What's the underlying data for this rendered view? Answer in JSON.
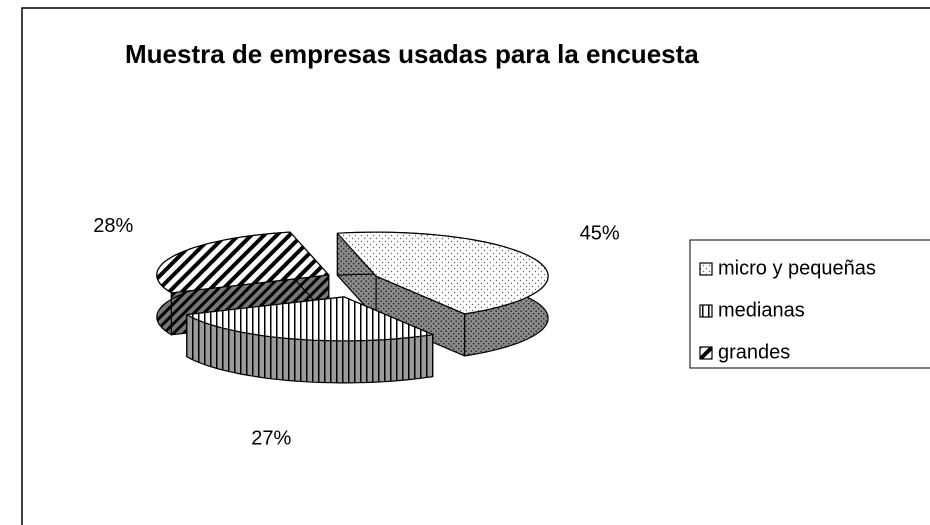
{
  "chart_data": {
    "type": "pie3d",
    "title": "Muestra de empresas usadas para la encuesta",
    "categories": [
      "micro y pequeñas",
      "medianas",
      "grandes"
    ],
    "values": [
      45,
      27,
      28
    ],
    "value_labels": [
      "45%",
      "27%",
      "28%"
    ],
    "patterns": [
      "dots",
      "vertical",
      "diagonal"
    ],
    "legend": "right"
  }
}
